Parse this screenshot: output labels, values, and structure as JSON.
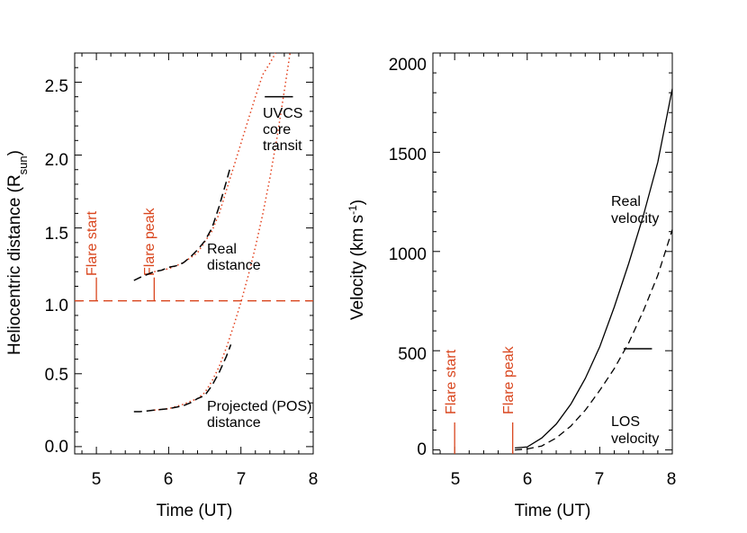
{
  "colors": {
    "flare": "#d9461e",
    "curve": "#000000",
    "projection": "#e3401c"
  },
  "chart_data": [
    {
      "type": "line",
      "xlabel": "Time (UT)",
      "ylabel_main": "Heliocentric distance (R",
      "ylabel_sub": "sun",
      "ylabel_close": ")",
      "xlim": [
        4.7,
        8.0
      ],
      "ylim": [
        -0.05,
        2.7
      ],
      "xticks": [
        5,
        6,
        7,
        8
      ],
      "xtick_labels": [
        "5",
        "6",
        "7",
        "8"
      ],
      "yticks": [
        0.0,
        0.5,
        1.0,
        1.5,
        2.0,
        2.5
      ],
      "ytick_labels": [
        "0.0",
        "0.5",
        "1.0",
        "1.5",
        "2.0",
        "2.5"
      ],
      "series": [
        {
          "role": "real-distance",
          "style": "long-dash",
          "x": [
            5.52,
            5.6,
            5.7,
            5.8,
            5.9,
            6.0,
            6.1,
            6.2,
            6.3,
            6.4,
            6.5,
            6.6,
            6.7,
            6.8,
            6.86
          ],
          "y": [
            1.14,
            1.16,
            1.18,
            1.2,
            1.21,
            1.23,
            1.24,
            1.26,
            1.3,
            1.35,
            1.41,
            1.5,
            1.65,
            1.82,
            1.93
          ]
        },
        {
          "role": "real-distance-extrapolation",
          "style": "dotted",
          "x": [
            5.8,
            6.0,
            6.2,
            6.4,
            6.6,
            6.7,
            6.8,
            6.9,
            7.0,
            7.1,
            7.2,
            7.3,
            7.4,
            7.48
          ],
          "y": [
            1.2,
            1.22,
            1.26,
            1.33,
            1.48,
            1.6,
            1.76,
            1.92,
            2.08,
            2.24,
            2.4,
            2.55,
            2.63,
            2.7
          ]
        },
        {
          "role": "projected-distance",
          "style": "long-dash",
          "x": [
            5.52,
            5.6,
            5.7,
            5.8,
            5.9,
            6.0,
            6.1,
            6.2,
            6.3,
            6.4,
            6.5,
            6.6,
            6.7,
            6.8,
            6.86
          ],
          "y": [
            0.24,
            0.24,
            0.245,
            0.25,
            0.255,
            0.26,
            0.27,
            0.28,
            0.3,
            0.33,
            0.35,
            0.42,
            0.51,
            0.62,
            0.7
          ]
        },
        {
          "role": "projected-distance-extrapolation",
          "style": "dotted",
          "x": [
            5.8,
            6.0,
            6.2,
            6.4,
            6.5,
            6.6,
            6.7,
            6.8,
            6.9,
            7.0,
            7.1,
            7.2,
            7.3,
            7.4,
            7.5,
            7.6,
            7.68
          ],
          "y": [
            0.25,
            0.26,
            0.29,
            0.33,
            0.37,
            0.45,
            0.55,
            0.68,
            0.83,
            0.99,
            1.17,
            1.37,
            1.59,
            1.84,
            2.12,
            2.44,
            2.7
          ]
        }
      ],
      "reference_line": {
        "y": 1.0,
        "style": "dashed"
      },
      "flares": [
        {
          "label": "Flare start",
          "x": 5.0
        },
        {
          "label": "Flare peak",
          "x": 5.8
        }
      ],
      "uvcs_bar": {
        "x_range": [
          7.33,
          7.72
        ],
        "y": 2.4
      },
      "annotations": {
        "real": [
          "Real",
          "distance"
        ],
        "projected": [
          "Projected (POS)",
          "distance"
        ],
        "uvcs": [
          "UVCS",
          "core",
          "transit"
        ]
      }
    },
    {
      "type": "line",
      "xlabel": "Time (UT)",
      "ylabel_main": "Velocity (km s",
      "ylabel_sup": "-1",
      "ylabel_close": ")",
      "xlim": [
        4.7,
        8.0
      ],
      "ylim": [
        -20,
        2000
      ],
      "xticks": [
        5,
        6,
        7,
        8
      ],
      "xtick_labels": [
        "5",
        "6",
        "7",
        "8"
      ],
      "yticks": [
        0,
        500,
        1000,
        1500,
        2000
      ],
      "ytick_labels": [
        "0",
        "500",
        "1000",
        "1500",
        "2000"
      ],
      "series": [
        {
          "role": "real-velocity",
          "style": "solid",
          "x": [
            5.83,
            6.0,
            6.2,
            6.4,
            6.6,
            6.8,
            7.0,
            7.2,
            7.4,
            7.6,
            7.8,
            8.0
          ],
          "y": [
            10,
            15,
            60,
            130,
            230,
            360,
            520,
            720,
            940,
            1180,
            1450,
            1820
          ]
        },
        {
          "role": "los-velocity",
          "style": "dashed",
          "x": [
            5.83,
            6.0,
            6.2,
            6.4,
            6.6,
            6.8,
            7.0,
            7.2,
            7.4,
            7.6,
            7.8,
            8.0
          ],
          "y": [
            0,
            5,
            20,
            60,
            120,
            200,
            300,
            410,
            540,
            700,
            880,
            1110
          ]
        }
      ],
      "flares": [
        {
          "label": "Flare start",
          "x": 5.0
        },
        {
          "label": "Flare peak",
          "x": 5.8
        }
      ],
      "error_bar": {
        "x_range": [
          7.33,
          7.72
        ],
        "y": 510
      },
      "annotations": {
        "real": [
          "Real",
          "velocity"
        ],
        "los": [
          "LOS",
          "velocity"
        ]
      }
    }
  ]
}
